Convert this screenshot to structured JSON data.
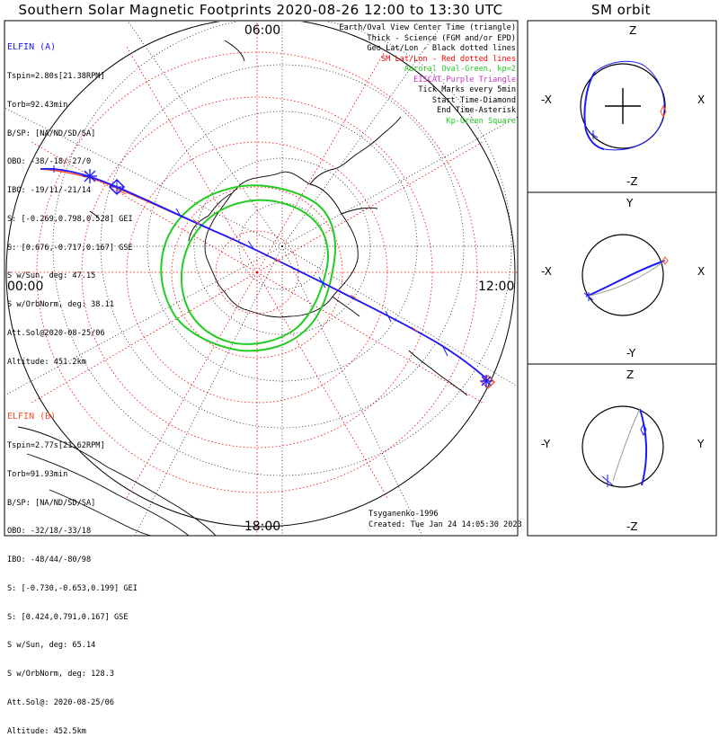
{
  "title": "Southern Solar Magnetic Footprints 2020-08-26 12:00 to 13:30 UTC",
  "sm_title": "SM orbit",
  "mlt_labels": {
    "top": "06:00",
    "left": "00:00",
    "right": "12:00",
    "bottom": "18:00"
  },
  "elfin_a": {
    "name": "ELFIN (A)",
    "color": "#1a1aff",
    "lines": [
      "Tspin=2.80s[21.38RPM]",
      "Torb=92.43min",
      "B/SP: [NA/ND/SD/SA]",
      "OBO: -38/-18/-27/0",
      "IBO: -19/11/-21/14",
      "S: [-0.269,0.798,0.528] GEI",
      "S: [0.676,-0.717,0.167] GSE",
      "S w/Sun, deg: 47.15",
      "S w/OrbNorm, deg: 38.11",
      "Att.Sol@2020-08-25/06",
      "Altitude: 451.2km"
    ]
  },
  "elfin_b": {
    "name": "ELFIN (B)",
    "color": "#ff4d2e",
    "lines": [
      "Tspin=2.77s[21.62RPM]",
      "Torb=91.93min",
      "B/SP: [NA/ND/SD/SA]",
      "OBO: -32/18/-33/18",
      "IBO: -48/44/-80/98",
      "S: [-0.730,-0.653,0.199] GEI",
      "S: [0.424,0.791,0.167] GSE",
      "S w/Sun, deg: 65.14",
      "S w/OrbNorm, deg: 128.3",
      "Att.Sol@: 2020-08-25/06",
      "Altitude: 452.5km"
    ]
  },
  "legend": [
    {
      "text": "Earth/Oval View Center Time (triangle)",
      "color": "#000000"
    },
    {
      "text": "Thick - Science (FGM and/or EPD)",
      "color": "#000000"
    },
    {
      "text": "Geo Lat/Lon - Black dotted lines",
      "color": "#000000"
    },
    {
      "text": "SM Lat/Lon - Red dotted lines",
      "color": "#ff0000"
    },
    {
      "text": "Auroral Oval-Green, kp=2",
      "color": "#22cc22"
    },
    {
      "text": "EISCAT-Purple Triangle",
      "color": "#cc33cc"
    },
    {
      "text": "Tick Marks every 5min",
      "color": "#000000"
    },
    {
      "text": "Start Time-Diamond",
      "color": "#000000"
    },
    {
      "text": "End Time-Asterisk",
      "color": "#000000"
    },
    {
      "text": "Kp-Green Square",
      "color": "#22cc22"
    }
  ],
  "footer": {
    "credit": "Tsyganenko-1996",
    "created": "Created: Tue Jan 24 14:05:30 2023"
  },
  "sm_panels": [
    {
      "top": "Z",
      "bottom": "-Z",
      "left": "-X",
      "right": "X"
    },
    {
      "top": "Y",
      "bottom": "-Y",
      "left": "-X",
      "right": "X"
    },
    {
      "top": "Z",
      "bottom": "-Z",
      "left": "-Y",
      "right": "Y"
    }
  ]
}
